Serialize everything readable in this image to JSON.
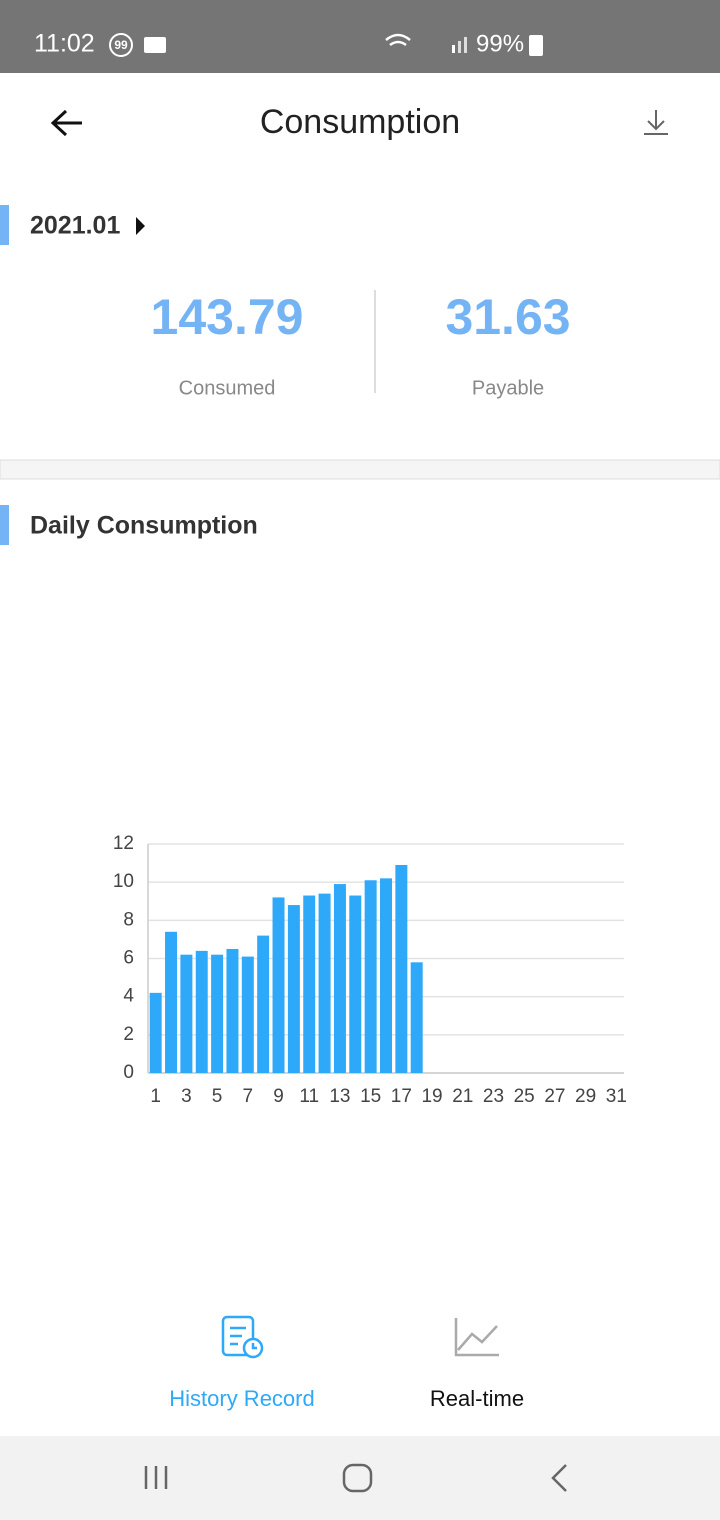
{
  "status_bar": {
    "time": "11:02",
    "badge": "99",
    "battery": "99%"
  },
  "header": {
    "title": "Consumption"
  },
  "summary": {
    "period": "2021.01",
    "consumed": {
      "value": "143.79",
      "label": "Consumed"
    },
    "payable": {
      "value": "31.63",
      "label": "Payable"
    }
  },
  "section_title": "Daily Consumption",
  "chart": {
    "type": "bar",
    "categories": [
      "1",
      null,
      "3",
      null,
      "5",
      null,
      "7",
      null,
      "9",
      null,
      "11",
      null,
      "13",
      null,
      "15",
      null,
      "17",
      null,
      "19",
      null,
      "21",
      null,
      "23",
      null,
      "25",
      null,
      "27",
      null,
      "29",
      null,
      "31"
    ],
    "values": [
      4.2,
      7.4,
      6.2,
      6.4,
      6.2,
      6.5,
      6.1,
      7.2,
      9.2,
      8.8,
      9.3,
      9.4,
      9.9,
      9.3,
      10.1,
      10.2,
      10.9,
      5.8,
      null,
      null,
      null,
      null,
      null,
      null,
      null,
      null,
      null,
      null,
      null,
      null,
      null
    ],
    "color": "#2ea8f8",
    "ylim": [
      0,
      12
    ],
    "yticks": [
      0,
      2,
      4,
      6,
      8,
      10,
      12
    ],
    "grid": true
  },
  "tabs": [
    {
      "label": "History Record"
    },
    {
      "label": "Real-time"
    }
  ]
}
